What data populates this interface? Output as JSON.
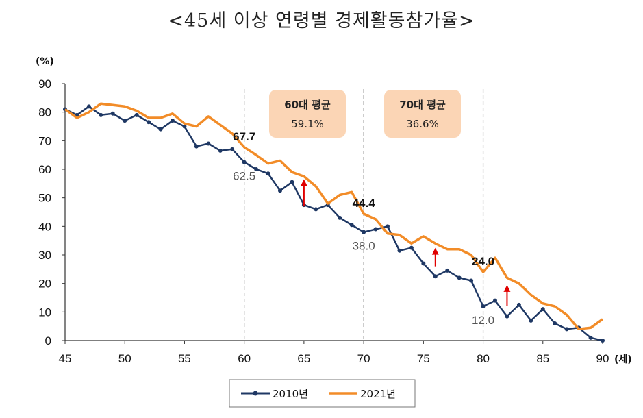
{
  "title": "<45세 이상 연령별 경제활동참가율>",
  "chart_data": {
    "type": "line",
    "ylabel": "(%)",
    "xlabel": "(세)",
    "xlim": [
      45,
      90
    ],
    "ylim": [
      0,
      90
    ],
    "xticks": [
      45,
      50,
      55,
      60,
      65,
      70,
      75,
      80,
      85,
      90
    ],
    "yticks": [
      0,
      10,
      20,
      30,
      40,
      50,
      60,
      70,
      80,
      90
    ],
    "vlines": [
      60,
      70,
      80
    ],
    "series": [
      {
        "name": "2010년",
        "color": "#1f3864",
        "x": [
          45,
          46,
          47,
          48,
          49,
          50,
          51,
          52,
          53,
          54,
          55,
          56,
          57,
          58,
          59,
          60,
          61,
          62,
          63,
          64,
          65,
          66,
          67,
          68,
          69,
          70,
          71,
          72,
          73,
          74,
          75,
          76,
          77,
          78,
          79,
          80,
          81,
          82,
          83,
          84,
          85,
          86,
          87,
          88,
          89,
          90
        ],
        "values": [
          81,
          79,
          82,
          79,
          79.5,
          77,
          79,
          76.5,
          74,
          77,
          75,
          68,
          69,
          66.5,
          67,
          62.5,
          60,
          58.5,
          52.5,
          55.5,
          47.5,
          46,
          47.5,
          43,
          40.5,
          38,
          39,
          40,
          31.5,
          32.5,
          27,
          22.5,
          24.5,
          22,
          21,
          12,
          14,
          8.5,
          12.5,
          7,
          11,
          6,
          4,
          4.5,
          1,
          0
        ]
      },
      {
        "name": "2021년",
        "color": "#f28c28",
        "x": [
          45,
          46,
          47,
          48,
          49,
          50,
          51,
          52,
          53,
          54,
          55,
          56,
          57,
          58,
          59,
          60,
          61,
          62,
          63,
          64,
          65,
          66,
          67,
          68,
          69,
          70,
          71,
          72,
          73,
          74,
          75,
          76,
          77,
          78,
          79,
          80,
          81,
          82,
          83,
          84,
          85,
          86,
          87,
          88,
          89,
          90
        ],
        "values": [
          81,
          78,
          80,
          83,
          82.5,
          82,
          80.5,
          78,
          78,
          79.5,
          76,
          75,
          78.5,
          75.5,
          72.5,
          67.7,
          65,
          62,
          63,
          59,
          57.5,
          54,
          48,
          51,
          52,
          44.4,
          42.5,
          37.5,
          37,
          34,
          36.5,
          34,
          32,
          32,
          30,
          24,
          29,
          22,
          20,
          16,
          13,
          12,
          9,
          4,
          4.5,
          7.5
        ]
      }
    ],
    "data_labels": [
      {
        "x": 60,
        "y": 67.7,
        "text": "67.7",
        "series": "2021년"
      },
      {
        "x": 60,
        "y": 62.5,
        "text": "62.5",
        "series": "2010년"
      },
      {
        "x": 70,
        "y": 44.4,
        "text": "44.4",
        "series": "2021년"
      },
      {
        "x": 70,
        "y": 38.0,
        "text": "38.0",
        "series": "2010년"
      },
      {
        "x": 80,
        "y": 24.0,
        "text": "24.0",
        "series": "2021년"
      },
      {
        "x": 80,
        "y": 12.0,
        "text": "12.0",
        "series": "2010년"
      }
    ],
    "annotations": [
      {
        "line1": "60대 평균",
        "line2": "59.1%"
      },
      {
        "line1": "70대 평균",
        "line2": "36.6%"
      }
    ],
    "arrows": [
      {
        "x": 65,
        "from": 47,
        "to": 56
      },
      {
        "x": 76,
        "from": 26,
        "to": 32
      },
      {
        "x": 82,
        "from": 12,
        "to": 19
      }
    ],
    "legend": {
      "placement": "bottom-center"
    }
  }
}
